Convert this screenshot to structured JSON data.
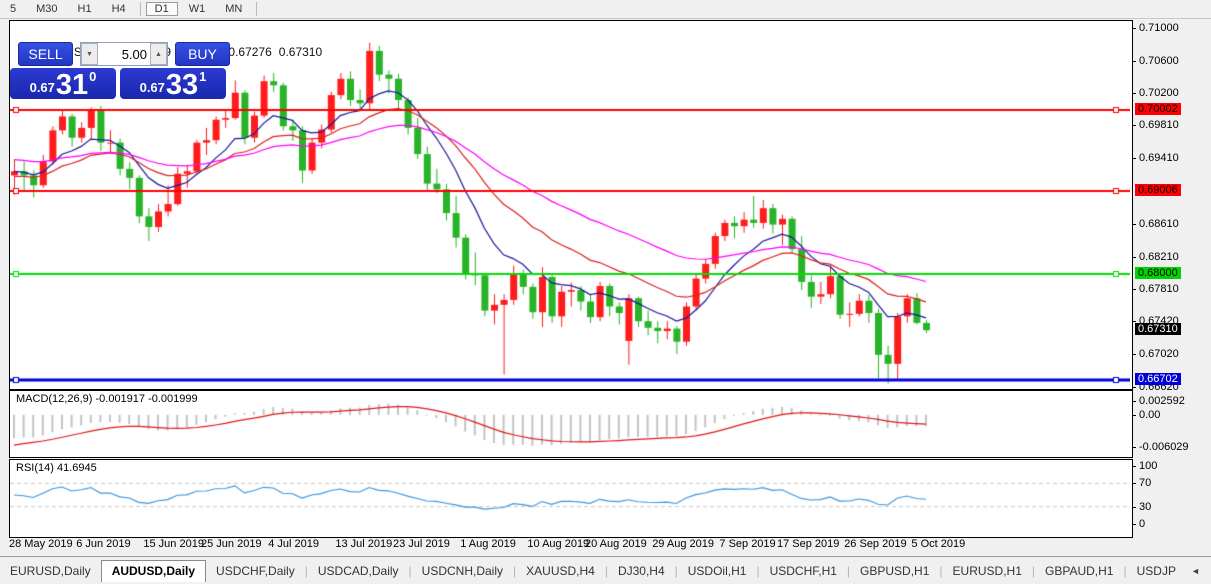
{
  "toolbar": {
    "timeframes": [
      {
        "label": "5",
        "active": false
      },
      {
        "label": "M30",
        "active": false
      },
      {
        "label": "H1",
        "active": false
      },
      {
        "label": "H4",
        "active": false
      },
      {
        "label": "D1",
        "active": true
      },
      {
        "label": "W1",
        "active": false
      },
      {
        "label": "MN",
        "active": false
      }
    ]
  },
  "chart_header": {
    "collapse_icon": "▲",
    "symbol": "AUDUSD,Daily",
    "open": "0.67399",
    "high": "0.67433",
    "low": "0.67276",
    "close": "0.67310"
  },
  "trade_panel": {
    "sell_label": "SELL",
    "buy_label": "BUY",
    "volume": "5.00",
    "down_icon": "▼",
    "up_icon": "▲",
    "sell_price": {
      "base": "0.67",
      "big": "31",
      "sup": "0"
    },
    "buy_price": {
      "base": "0.67",
      "big": "33",
      "sup": "1"
    }
  },
  "chart_data": {
    "type": "candlestick",
    "title": "AUDUSD,Daily",
    "ylim": [
      0.66617,
      0.71085
    ],
    "x_first": 4,
    "x_spacing": 9.6,
    "body_width": 7,
    "colors": {
      "bull": "#ff1c1c",
      "bear": "#28b428",
      "ma_fast": "#1a1aa0",
      "ma_mid": "#dd2222",
      "ma_slow": "#ff00ff"
    },
    "y_ticks": [
      "0.71000",
      "0.70600",
      "0.70200",
      "0.69810",
      "0.69410",
      "0.68610",
      "0.68210",
      "0.67810",
      "0.67420",
      "0.67020",
      "0.66620"
    ],
    "y_badges": [
      {
        "label": "0.70002",
        "price": 0.70002,
        "bg": "#ff0000",
        "fg": "#000"
      },
      {
        "label": "0.69006",
        "price": 0.69006,
        "bg": "#ff0000",
        "fg": "#000"
      },
      {
        "label": "0.68000",
        "price": 0.68,
        "bg": "#00d400",
        "fg": "#000"
      },
      {
        "label": "0.67310",
        "price": 0.6731,
        "bg": "#000000",
        "fg": "#fff"
      },
      {
        "label": "0.66702",
        "price": 0.66702,
        "bg": "#0000d8",
        "fg": "#fff"
      }
    ],
    "hlines": [
      {
        "price": 0.70002,
        "color": "#ff0000",
        "width": 2
      },
      {
        "price": 0.69006,
        "color": "#ff0000",
        "width": 2
      },
      {
        "price": 0.68,
        "color": "#00e000",
        "width": 2
      },
      {
        "price": 0.66702,
        "color": "#0000dd",
        "width": 3
      }
    ],
    "moving_averages": [
      {
        "period": 9,
        "seed": 0.6925,
        "color": "#1a1aa0"
      },
      {
        "period": 20,
        "seed": 0.6918,
        "color": "#dd2222"
      },
      {
        "period": 40,
        "seed": 0.694,
        "color": "#ff00ff"
      }
    ],
    "candles": [
      [
        0.692,
        0.694,
        0.6896,
        0.6925
      ],
      [
        0.6925,
        0.6937,
        0.6902,
        0.692
      ],
      [
        0.692,
        0.6926,
        0.6893,
        0.6908
      ],
      [
        0.6908,
        0.6945,
        0.6905,
        0.6937
      ],
      [
        0.6937,
        0.698,
        0.6933,
        0.6975
      ],
      [
        0.6975,
        0.7,
        0.697,
        0.6992
      ],
      [
        0.6992,
        0.6995,
        0.6955,
        0.6966
      ],
      [
        0.6966,
        0.6985,
        0.696,
        0.6978
      ],
      [
        0.6978,
        0.7003,
        0.6963,
        0.7
      ],
      [
        0.7,
        0.7005,
        0.695,
        0.696
      ],
      [
        0.696,
        0.6975,
        0.6948,
        0.696
      ],
      [
        0.696,
        0.6965,
        0.692,
        0.6928
      ],
      [
        0.6928,
        0.6936,
        0.6903,
        0.6917
      ],
      [
        0.6917,
        0.692,
        0.6862,
        0.687
      ],
      [
        0.687,
        0.688,
        0.684,
        0.6857
      ],
      [
        0.6857,
        0.6885,
        0.6851,
        0.6876
      ],
      [
        0.6876,
        0.6908,
        0.687,
        0.6885
      ],
      [
        0.6885,
        0.693,
        0.6883,
        0.6922
      ],
      [
        0.6922,
        0.6933,
        0.6905,
        0.6925
      ],
      [
        0.6925,
        0.6963,
        0.6922,
        0.696
      ],
      [
        0.696,
        0.6978,
        0.6945,
        0.6963
      ],
      [
        0.6963,
        0.6992,
        0.6958,
        0.6988
      ],
      [
        0.6988,
        0.7,
        0.6978,
        0.699
      ],
      [
        0.699,
        0.7036,
        0.6988,
        0.7021
      ],
      [
        0.7021,
        0.7024,
        0.6958,
        0.6966
      ],
      [
        0.6966,
        0.6998,
        0.696,
        0.6993
      ],
      [
        0.6993,
        0.7042,
        0.699,
        0.7035
      ],
      [
        0.7035,
        0.7045,
        0.7022,
        0.703
      ],
      [
        0.703,
        0.7033,
        0.6975,
        0.698
      ],
      [
        0.698,
        0.6988,
        0.6962,
        0.6975
      ],
      [
        0.6975,
        0.698,
        0.6911,
        0.6926
      ],
      [
        0.6926,
        0.6965,
        0.6922,
        0.696
      ],
      [
        0.696,
        0.6982,
        0.6953,
        0.6976
      ],
      [
        0.6976,
        0.7022,
        0.6972,
        0.7018
      ],
      [
        0.7018,
        0.7045,
        0.7013,
        0.7038
      ],
      [
        0.7038,
        0.7047,
        0.7005,
        0.7012
      ],
      [
        0.7012,
        0.7025,
        0.7,
        0.7008
      ],
      [
        0.7008,
        0.7082,
        0.7,
        0.7072
      ],
      [
        0.7072,
        0.7078,
        0.7035,
        0.7043
      ],
      [
        0.7043,
        0.7048,
        0.702,
        0.7038
      ],
      [
        0.7038,
        0.7044,
        0.7,
        0.7012
      ],
      [
        0.7012,
        0.7015,
        0.697,
        0.6978
      ],
      [
        0.6978,
        0.699,
        0.694,
        0.6946
      ],
      [
        0.6946,
        0.6955,
        0.69,
        0.691
      ],
      [
        0.691,
        0.6928,
        0.6898,
        0.6903
      ],
      [
        0.6903,
        0.691,
        0.6865,
        0.6874
      ],
      [
        0.6874,
        0.6895,
        0.6832,
        0.6844
      ],
      [
        0.6844,
        0.6848,
        0.6793,
        0.68
      ],
      [
        0.68,
        0.6826,
        0.6786,
        0.6798
      ],
      [
        0.6798,
        0.68,
        0.6748,
        0.6755
      ],
      [
        0.6755,
        0.6775,
        0.6738,
        0.6762
      ],
      [
        0.6762,
        0.6775,
        0.6677,
        0.6768
      ],
      [
        0.6768,
        0.681,
        0.6762,
        0.68
      ],
      [
        0.68,
        0.6805,
        0.6775,
        0.6784
      ],
      [
        0.6784,
        0.6788,
        0.6745,
        0.6753
      ],
      [
        0.6753,
        0.6808,
        0.6735,
        0.6796
      ],
      [
        0.6796,
        0.6798,
        0.674,
        0.6748
      ],
      [
        0.6748,
        0.6785,
        0.6735,
        0.6778
      ],
      [
        0.6778,
        0.6789,
        0.676,
        0.678
      ],
      [
        0.678,
        0.6785,
        0.6755,
        0.6766
      ],
      [
        0.6766,
        0.6775,
        0.674,
        0.6747
      ],
      [
        0.6747,
        0.679,
        0.6742,
        0.6785
      ],
      [
        0.6785,
        0.6788,
        0.6748,
        0.676
      ],
      [
        0.676,
        0.6765,
        0.6738,
        0.6752
      ],
      [
        0.6718,
        0.6775,
        0.6689,
        0.677
      ],
      [
        0.677,
        0.6772,
        0.6735,
        0.6742
      ],
      [
        0.6742,
        0.6755,
        0.6725,
        0.6734
      ],
      [
        0.6734,
        0.6742,
        0.6715,
        0.673
      ],
      [
        0.673,
        0.6742,
        0.672,
        0.6733
      ],
      [
        0.6733,
        0.6736,
        0.6702,
        0.6717
      ],
      [
        0.6717,
        0.6765,
        0.6712,
        0.676
      ],
      [
        0.676,
        0.68,
        0.6755,
        0.6794
      ],
      [
        0.6794,
        0.6818,
        0.6788,
        0.6812
      ],
      [
        0.6812,
        0.685,
        0.6806,
        0.6846
      ],
      [
        0.6846,
        0.6866,
        0.684,
        0.6862
      ],
      [
        0.6862,
        0.687,
        0.6843,
        0.6858
      ],
      [
        0.6858,
        0.6875,
        0.685,
        0.6866
      ],
      [
        0.6866,
        0.6895,
        0.6856,
        0.6862
      ],
      [
        0.6862,
        0.689,
        0.6855,
        0.688
      ],
      [
        0.688,
        0.6885,
        0.6849,
        0.686
      ],
      [
        0.686,
        0.6872,
        0.6835,
        0.6867
      ],
      [
        0.6867,
        0.687,
        0.6825,
        0.683
      ],
      [
        0.683,
        0.6846,
        0.678,
        0.679
      ],
      [
        0.679,
        0.6798,
        0.6758,
        0.6772
      ],
      [
        0.6772,
        0.679,
        0.6763,
        0.6775
      ],
      [
        0.6775,
        0.681,
        0.677,
        0.6797
      ],
      [
        0.6797,
        0.68,
        0.6745,
        0.675
      ],
      [
        0.675,
        0.6765,
        0.6735,
        0.6751
      ],
      [
        0.6751,
        0.6775,
        0.6748,
        0.6767
      ],
      [
        0.6767,
        0.6774,
        0.674,
        0.6752
      ],
      [
        0.6752,
        0.6757,
        0.6672,
        0.6701
      ],
      [
        0.6701,
        0.6712,
        0.6666,
        0.669
      ],
      [
        0.669,
        0.6752,
        0.6671,
        0.6748
      ],
      [
        0.6748,
        0.6775,
        0.674,
        0.677
      ],
      [
        0.677,
        0.6776,
        0.6738,
        0.674
      ],
      [
        0.67399,
        0.67433,
        0.67276,
        0.6731
      ]
    ],
    "x_tick_labels": [
      {
        "text": "28 May 2019",
        "index": 0
      },
      {
        "text": "6 Jun 2019",
        "index": 7
      },
      {
        "text": "15 Jun 2019",
        "index": 14
      },
      {
        "text": "25 Jun 2019",
        "index": 20
      },
      {
        "text": "4 Jul 2019",
        "index": 27
      },
      {
        "text": "13 Jul 2019",
        "index": 34
      },
      {
        "text": "23 Jul 2019",
        "index": 40
      },
      {
        "text": "1 Aug 2019",
        "index": 47
      },
      {
        "text": "10 Aug 2019",
        "index": 54
      },
      {
        "text": "20 Aug 2019",
        "index": 60
      },
      {
        "text": "29 Aug 2019",
        "index": 67
      },
      {
        "text": "7 Sep 2019",
        "index": 74
      },
      {
        "text": "17 Sep 2019",
        "index": 80
      },
      {
        "text": "26 Sep 2019",
        "index": 87
      },
      {
        "text": "5 Oct 2019",
        "index": 94
      }
    ]
  },
  "macd_panel": {
    "name": "MACD(12,26,9)",
    "value1": "-0.001917",
    "value2": "-0.001999",
    "axis_ticks": [
      "0.002592",
      "0.00",
      "-0.006029"
    ],
    "range_top": 0.002592,
    "range_bottom": -0.006029,
    "fast": 12,
    "slow": 26,
    "signal": 9,
    "seed_fast": 0.695,
    "seed_slow": 0.6995,
    "seed_signal": -0.006,
    "hist_color": "#c4c4c4",
    "signal_color": "#e01818"
  },
  "rsi_panel": {
    "name": "RSI(14)",
    "value": "41.6945",
    "axis_ticks": [
      "100",
      "70",
      "30",
      "0"
    ],
    "levels": [
      70,
      30
    ],
    "period": 14,
    "line_color": "#3d95dd",
    "level_color": "#c9c9c9"
  },
  "tabs": {
    "items": [
      "EURUSD,Daily",
      "AUDUSD,Daily",
      "USDCHF,Daily",
      "USDCAD,Daily",
      "USDCNH,Daily",
      "XAUUSD,H4",
      "DJ30,H4",
      "USDOil,H1",
      "USDCHF,H1",
      "GBPUSD,H1",
      "EURUSD,H1",
      "GBPAUD,H1",
      "USDJP"
    ],
    "active_index": 1,
    "scroll_left_icon": "◄",
    "scroll_right_icon": "►"
  }
}
